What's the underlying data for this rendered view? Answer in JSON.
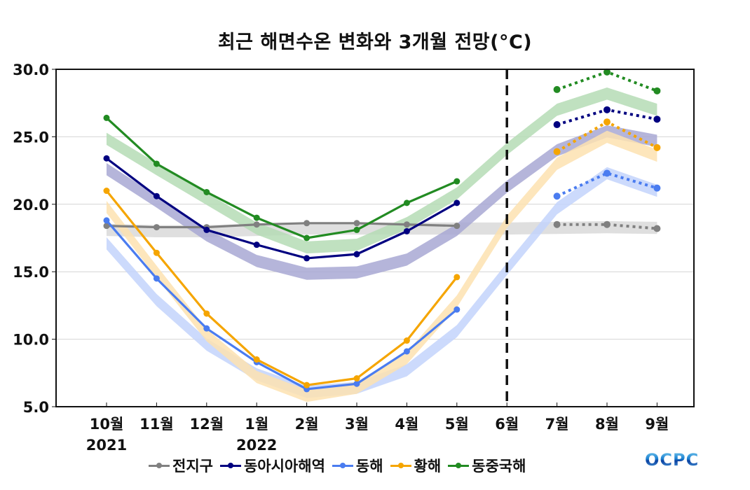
{
  "chart_data": {
    "type": "line",
    "title": "최근 해면수온 변화와 3개월 전망(°C)",
    "xlabel": "",
    "ylabel": "",
    "ylim": [
      5.0,
      30.0
    ],
    "yticks": [
      "5.0",
      "10.0",
      "15.0",
      "20.0",
      "25.0",
      "30.0"
    ],
    "ytick_values": [
      5,
      10,
      15,
      20,
      25,
      30
    ],
    "categories": [
      "10월",
      "11월",
      "12월",
      "1월",
      "2월",
      "3월",
      "4월",
      "5월",
      "6월",
      "7월",
      "8월",
      "9월"
    ],
    "year_labels": [
      {
        "category_index": 0,
        "text": "2021"
      },
      {
        "category_index": 3,
        "text": "2022"
      }
    ],
    "grid": "horizontal",
    "divider": {
      "after_category": "6월",
      "style": "dashed",
      "meaning": "observed vs forecast"
    },
    "legend_position": "bottom",
    "series": [
      {
        "name": "전지구",
        "color": "#808080",
        "band_color": "#d9d9d9",
        "observed": [
          18.4,
          18.3,
          18.3,
          18.5,
          18.6,
          18.6,
          18.5,
          18.4,
          null,
          null,
          null,
          null
        ],
        "forecast": [
          null,
          null,
          null,
          null,
          null,
          null,
          null,
          null,
          null,
          18.5,
          18.5,
          18.2
        ],
        "climatology": [
          18.1,
          18.0,
          18.0,
          18.1,
          18.2,
          18.2,
          18.2,
          18.2,
          18.2,
          18.25,
          18.3,
          18.25
        ]
      },
      {
        "name": "동아시아해역",
        "color": "#000080",
        "band_color": "#a8a8d4",
        "observed": [
          23.4,
          20.6,
          18.1,
          17.0,
          16.0,
          16.3,
          18.0,
          20.1,
          null,
          null,
          null,
          null
        ],
        "forecast": [
          null,
          null,
          null,
          null,
          null,
          null,
          null,
          null,
          null,
          25.9,
          27.0,
          26.3
        ],
        "climatology": [
          22.6,
          20.2,
          17.7,
          15.8,
          14.85,
          14.95,
          15.9,
          18.1,
          21.3,
          24.0,
          25.4,
          24.7
        ]
      },
      {
        "name": "동해",
        "color": "#4a7cf0",
        "band_color": "#c3d3fb",
        "observed": [
          18.8,
          14.5,
          10.8,
          8.3,
          6.3,
          6.7,
          9.1,
          12.2,
          null,
          null,
          null,
          null
        ],
        "forecast": [
          null,
          null,
          null,
          null,
          null,
          null,
          null,
          null,
          null,
          20.6,
          22.3,
          21.2
        ],
        "climatology": [
          17.1,
          12.9,
          9.6,
          7.4,
          6.1,
          6.4,
          7.7,
          10.6,
          15.2,
          19.7,
          22.3,
          21.0
        ]
      },
      {
        "name": "황해",
        "color": "#f5a500",
        "band_color": "#fde2b0",
        "observed": [
          21.0,
          16.4,
          11.9,
          8.5,
          6.6,
          7.1,
          9.9,
          14.6,
          null,
          null,
          null,
          null
        ],
        "forecast": [
          null,
          null,
          null,
          null,
          null,
          null,
          null,
          null,
          null,
          23.9,
          26.1,
          24.2
        ],
        "climatology": [
          19.8,
          15.0,
          10.3,
          7.2,
          5.8,
          6.4,
          8.6,
          12.8,
          18.7,
          23.0,
          25.0,
          23.6
        ]
      },
      {
        "name": "동중국해",
        "color": "#228b22",
        "band_color": "#b5dcb5",
        "observed": [
          26.4,
          23.0,
          20.9,
          19.0,
          17.5,
          18.1,
          20.1,
          21.7,
          null,
          null,
          null,
          null
        ],
        "forecast": [
          null,
          null,
          null,
          null,
          null,
          null,
          null,
          null,
          null,
          28.5,
          29.8,
          28.4
        ],
        "climatology": [
          24.85,
          22.6,
          20.4,
          18.2,
          16.8,
          17.0,
          18.6,
          20.8,
          24.1,
          27.0,
          28.2,
          27.0
        ]
      }
    ]
  },
  "logo": {
    "text": "OCPC"
  }
}
